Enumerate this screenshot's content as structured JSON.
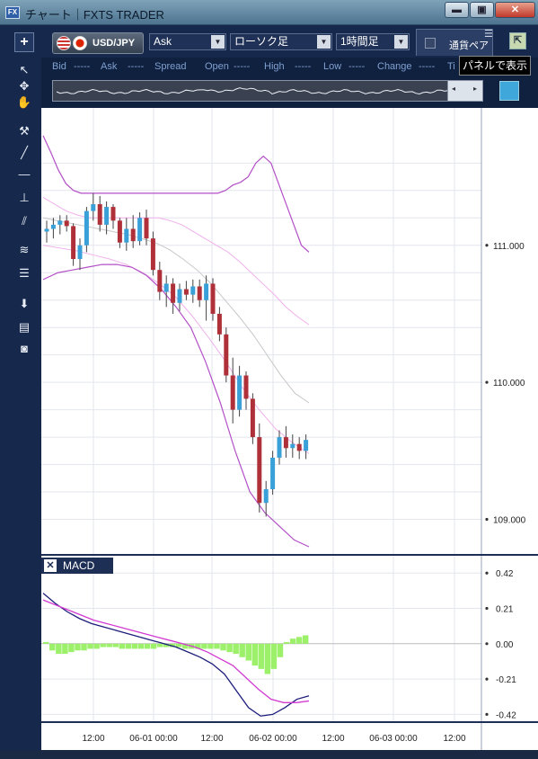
{
  "window": {
    "title": "チャート｜FXTS TRADER",
    "app_icon": "FX",
    "min_glyph": "▬",
    "max_glyph": "▣",
    "close_glyph": "✕"
  },
  "toolbar": {
    "add_glyph": "+",
    "pair": "USD/JPY",
    "side": "Ask",
    "chart_type": "ローソク足",
    "period": "1時間足",
    "panel_tab_label": "通貨ペア",
    "dropdown_glyph": "▼",
    "menu_glyph": "☰",
    "undock_glyph": "⇱"
  },
  "tooltip": "パネルで表示",
  "quote": {
    "bid_label": "Bid",
    "bid_value": "-----",
    "ask_label": "Ask",
    "ask_value": "-----",
    "spread_label": "Spread",
    "open_label": "Open",
    "open_value": "-----",
    "high_label": "High",
    "high_value": "-----",
    "low_label": "Low",
    "low_value": "-----",
    "change_label": "Change",
    "change_value": "-----",
    "time_label": "Ti"
  },
  "navigator": {
    "left_glyph": "◂",
    "right_glyph": "▸"
  },
  "tools": {
    "pointer": "↖",
    "crosshair": "✥",
    "hand": "✋",
    "hammer": "⚒",
    "trendline": "╱",
    "hline": "—",
    "tline": "⊥",
    "channel": "⫽",
    "fan": "≋",
    "fib": "☰",
    "download": "⬇",
    "list": "▤",
    "camera": "◙"
  },
  "macd": {
    "close_glyph": "✕",
    "label": "MACD"
  },
  "chart_data": [
    {
      "type": "candlestick",
      "series": [
        {
          "name": "price",
          "ohlc": [
            [
              111.1,
              111.18,
              111.02,
              111.12
            ],
            [
              111.12,
              111.2,
              111.05,
              111.15
            ],
            [
              111.15,
              111.22,
              111.08,
              111.18
            ],
            [
              111.18,
              111.22,
              111.1,
              111.14
            ],
            [
              111.14,
              111.16,
              110.85,
              110.9
            ],
            [
              110.9,
              111.05,
              110.82,
              111.0
            ],
            [
              111.0,
              111.28,
              110.95,
              111.25
            ],
            [
              111.25,
              111.38,
              111.18,
              111.3
            ],
            [
              111.3,
              111.36,
              111.1,
              111.15
            ],
            [
              111.15,
              111.32,
              111.08,
              111.28
            ],
            [
              111.28,
              111.3,
              111.12,
              111.18
            ],
            [
              111.18,
              111.2,
              110.98,
              111.02
            ],
            [
              111.02,
              111.2,
              110.96,
              111.12
            ],
            [
              111.12,
              111.22,
              110.98,
              111.03
            ],
            [
              111.03,
              111.24,
              111.0,
              111.2
            ],
            [
              111.2,
              111.26,
              111.0,
              111.05
            ],
            [
              111.05,
              111.1,
              110.78,
              110.82
            ],
            [
              110.82,
              110.88,
              110.6,
              110.66
            ],
            [
              110.66,
              110.78,
              110.55,
              110.72
            ],
            [
              110.72,
              110.76,
              110.5,
              110.58
            ],
            [
              110.58,
              110.72,
              110.52,
              110.68
            ],
            [
              110.68,
              110.74,
              110.6,
              110.64
            ],
            [
              110.64,
              110.75,
              110.58,
              110.7
            ],
            [
              110.7,
              110.75,
              110.55,
              110.6
            ],
            [
              110.6,
              110.78,
              110.45,
              110.72
            ],
            [
              110.72,
              110.76,
              110.45,
              110.5
            ],
            [
              110.5,
              110.55,
              110.3,
              110.35
            ],
            [
              110.35,
              110.4,
              110.0,
              110.05
            ],
            [
              110.05,
              110.18,
              109.7,
              109.8
            ],
            [
              109.8,
              110.12,
              109.75,
              110.05
            ],
            [
              110.05,
              110.08,
              109.8,
              109.88
            ],
            [
              109.88,
              109.92,
              109.55,
              109.6
            ],
            [
              109.6,
              109.7,
              109.05,
              109.12
            ],
            [
              109.12,
              109.28,
              109.02,
              109.22
            ],
            [
              109.22,
              109.5,
              109.18,
              109.45
            ],
            [
              109.45,
              109.65,
              109.4,
              109.6
            ],
            [
              109.6,
              109.68,
              109.45,
              109.52
            ],
            [
              109.52,
              109.62,
              109.45,
              109.55
            ],
            [
              109.55,
              109.6,
              109.44,
              109.5
            ],
            [
              109.5,
              109.62,
              109.44,
              109.58
            ]
          ]
        },
        {
          "name": "band-upper-2",
          "values": [
            111.8,
            111.68,
            111.55,
            111.45,
            111.4,
            111.38,
            111.38,
            111.38,
            111.38,
            111.38,
            111.38,
            111.38,
            111.38,
            111.38,
            111.38,
            111.38,
            111.38,
            111.38,
            111.38,
            111.38,
            111.38,
            111.38,
            111.38,
            111.38,
            111.4,
            111.44,
            111.46,
            111.5,
            111.6,
            111.65,
            111.6,
            111.45,
            111.3,
            111.15,
            111.0,
            110.95
          ]
        },
        {
          "name": "band-upper-1",
          "values": [
            111.35,
            111.3,
            111.25,
            111.22,
            111.2,
            111.2,
            111.2,
            111.2,
            111.2,
            111.2,
            111.2,
            111.18,
            111.15,
            111.1,
            111.05,
            111.0,
            110.95,
            110.88,
            110.8,
            110.72,
            110.64,
            110.55,
            110.48,
            110.42
          ]
        },
        {
          "name": "mid",
          "values": [
            111.2,
            111.18,
            111.16,
            111.14,
            111.12,
            111.1,
            111.08,
            111.05,
            111.02,
            110.97,
            110.9,
            110.82,
            110.72,
            110.6,
            110.48,
            110.35,
            110.2,
            110.05,
            109.92,
            109.85
          ]
        },
        {
          "name": "band-lower-1",
          "values": [
            111.0,
            110.98,
            110.96,
            110.93,
            110.9,
            110.86,
            110.8,
            110.72,
            110.62,
            110.48,
            110.32,
            110.15,
            109.96,
            109.8,
            109.66,
            109.56,
            109.48
          ]
        },
        {
          "name": "band-lower-2",
          "values": [
            110.75,
            110.8,
            110.82,
            110.84,
            110.86,
            110.86,
            110.84,
            110.78,
            110.68,
            110.55,
            110.4,
            110.15,
            109.85,
            109.5,
            109.2,
            109.05,
            108.95,
            108.85,
            108.8
          ]
        }
      ],
      "yticks": [
        111.0,
        110.0,
        109.0
      ],
      "ylim": [
        108.8,
        111.95
      ]
    },
    {
      "type": "line",
      "series": [
        {
          "name": "macd",
          "values": [
            0.3,
            0.24,
            0.19,
            0.15,
            0.12,
            0.1,
            0.08,
            0.06,
            0.04,
            0.02,
            0.0,
            -0.02,
            -0.05,
            -0.08,
            -0.12,
            -0.18,
            -0.28,
            -0.38,
            -0.43,
            -0.42,
            -0.38,
            -0.33,
            -0.31
          ]
        },
        {
          "name": "signal",
          "values": [
            0.26,
            0.23,
            0.2,
            0.17,
            0.14,
            0.12,
            0.1,
            0.08,
            0.06,
            0.04,
            0.02,
            0.0,
            -0.02,
            -0.05,
            -0.09,
            -0.13,
            -0.2,
            -0.27,
            -0.33,
            -0.35,
            -0.35,
            -0.34
          ]
        }
      ],
      "histogram": [
        0.01,
        -0.04,
        -0.06,
        -0.06,
        -0.05,
        -0.04,
        -0.04,
        -0.03,
        -0.03,
        -0.02,
        -0.02,
        -0.02,
        -0.03,
        -0.03,
        -0.03,
        -0.03,
        -0.03,
        -0.03,
        -0.02,
        -0.02,
        -0.02,
        -0.02,
        -0.03,
        -0.03,
        -0.03,
        -0.03,
        -0.03,
        -0.03,
        -0.04,
        -0.05,
        -0.06,
        -0.08,
        -0.1,
        -0.13,
        -0.15,
        -0.18,
        -0.15,
        -0.08,
        0.01,
        0.03,
        0.04,
        0.05
      ],
      "yticks": [
        0.42,
        0.21,
        0.0,
        -0.21,
        -0.42
      ],
      "ylim": [
        -0.45,
        0.48
      ]
    }
  ],
  "xaxis": {
    "ticks": [
      "12:00",
      "06-01 00:00",
      "12:00",
      "06-02 00:00",
      "12:00",
      "06-03 00:00",
      "12:00"
    ]
  },
  "colors": {
    "bull": "#3aa0d8",
    "bear": "#b0303a",
    "band_outer": "#b34fc7",
    "band_inner": "#f0b0ec",
    "mid": "#c8c8c8",
    "macd": "#1c1d7a",
    "signal": "#d23ad2",
    "hist": "#9cf06a",
    "grid": "#e3e6ee"
  }
}
